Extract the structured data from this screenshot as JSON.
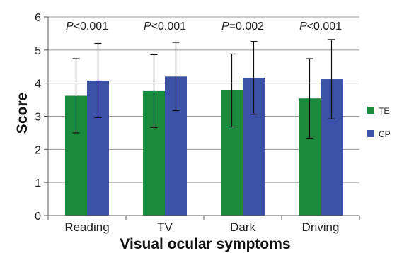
{
  "chart_data": {
    "type": "bar",
    "title": "",
    "xlabel": "Visual ocular symptoms",
    "ylabel": "Score",
    "ylim": [
      0,
      6
    ],
    "yticks": [
      0,
      1,
      2,
      3,
      4,
      5,
      6
    ],
    "grid": true,
    "legend_position": "right",
    "categories": [
      "Reading",
      "TV",
      "Dark",
      "Driving"
    ],
    "series": [
      {
        "name": "TE",
        "color": "#1b8a3c",
        "values": [
          3.62,
          3.76,
          3.78,
          3.54
        ],
        "error": [
          1.12,
          1.1,
          1.1,
          1.2
        ]
      },
      {
        "name": "CP",
        "color": "#3c52a6",
        "values": [
          4.08,
          4.2,
          4.16,
          4.12
        ],
        "error": [
          1.12,
          1.03,
          1.1,
          1.2
        ]
      }
    ],
    "annotations": [
      {
        "italic": "P",
        "rest": "<0.001"
      },
      {
        "italic": "P",
        "rest": "<0.001"
      },
      {
        "italic": "P",
        "rest": "=0.002"
      },
      {
        "italic": "P",
        "rest": "<0.001"
      }
    ]
  }
}
